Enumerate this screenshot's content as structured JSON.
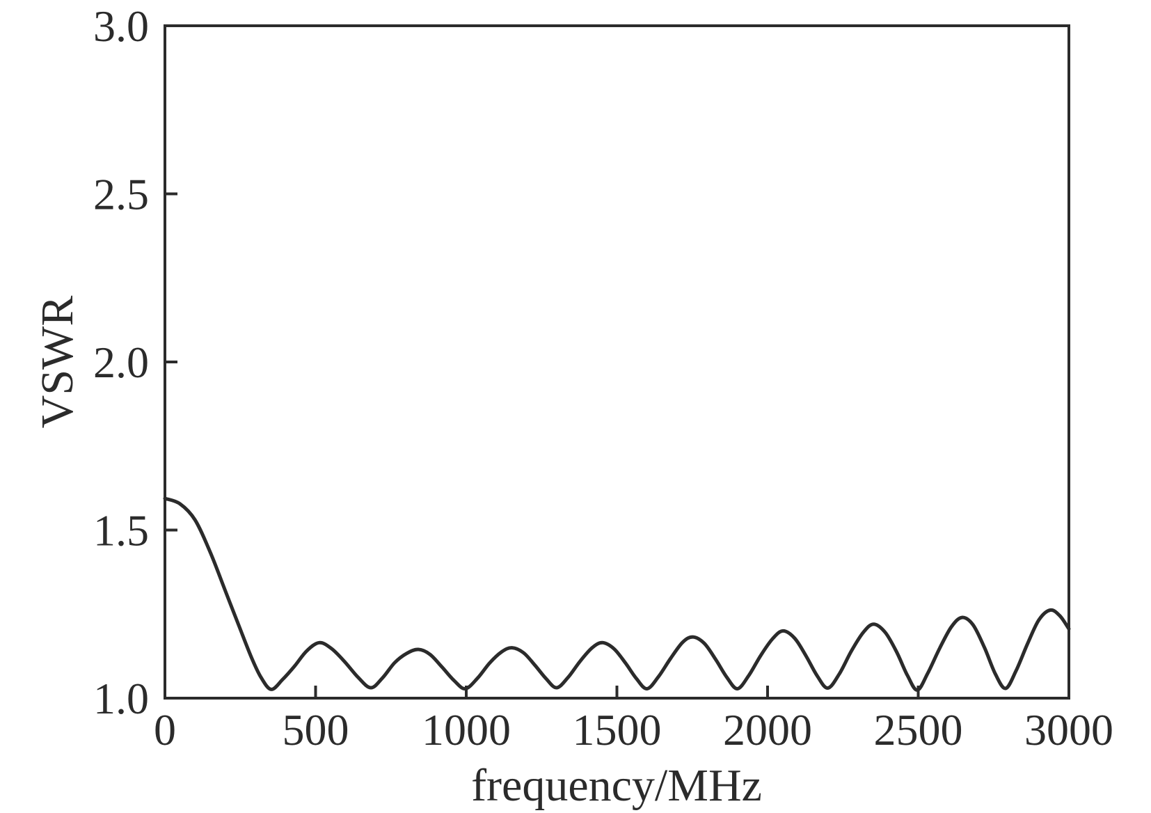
{
  "page": {
    "background": "#ffffff",
    "ink_color": "#2b2b2b"
  },
  "chart_data": {
    "type": "line",
    "title": "",
    "xlabel": "frequency/MHz",
    "ylabel": "VSWR",
    "xlim": [
      0,
      3000
    ],
    "ylim": [
      1.0,
      3.0
    ],
    "x_ticks": [
      0,
      500,
      1000,
      1500,
      2000,
      2500,
      3000
    ],
    "x_tick_labels": [
      "0",
      "500",
      "1000",
      "1500",
      "2000",
      "2500",
      "3000"
    ],
    "y_ticks": [
      1.0,
      1.5,
      2.0,
      2.5,
      3.0
    ],
    "y_tick_labels": [
      "1.0",
      "1.5",
      "2.0",
      "2.5",
      "3.0"
    ],
    "grid": false,
    "legend": "none",
    "frame_style": "closed box, major ticks inward on left and bottom axes only",
    "series": [
      {
        "name": "VSWR",
        "color": "#2b2b2b",
        "points": [
          [
            0,
            1.594
          ],
          [
            50,
            1.578
          ],
          [
            100,
            1.53
          ],
          [
            150,
            1.435
          ],
          [
            200,
            1.32
          ],
          [
            250,
            1.205
          ],
          [
            290,
            1.115
          ],
          [
            320,
            1.06
          ],
          [
            353,
            1.026
          ],
          [
            390,
            1.055
          ],
          [
            430,
            1.095
          ],
          [
            470,
            1.14
          ],
          [
            512,
            1.165
          ],
          [
            552,
            1.148
          ],
          [
            595,
            1.11
          ],
          [
            640,
            1.063
          ],
          [
            683,
            1.031
          ],
          [
            722,
            1.06
          ],
          [
            762,
            1.105
          ],
          [
            802,
            1.133
          ],
          [
            841,
            1.145
          ],
          [
            880,
            1.13
          ],
          [
            920,
            1.092
          ],
          [
            960,
            1.052
          ],
          [
            997,
            1.028
          ],
          [
            1038,
            1.06
          ],
          [
            1078,
            1.105
          ],
          [
            1118,
            1.138
          ],
          [
            1152,
            1.15
          ],
          [
            1190,
            1.135
          ],
          [
            1228,
            1.098
          ],
          [
            1265,
            1.058
          ],
          [
            1300,
            1.031
          ],
          [
            1338,
            1.062
          ],
          [
            1378,
            1.11
          ],
          [
            1418,
            1.15
          ],
          [
            1452,
            1.165
          ],
          [
            1490,
            1.147
          ],
          [
            1528,
            1.105
          ],
          [
            1565,
            1.058
          ],
          [
            1600,
            1.028
          ],
          [
            1638,
            1.064
          ],
          [
            1678,
            1.118
          ],
          [
            1718,
            1.166
          ],
          [
            1752,
            1.182
          ],
          [
            1790,
            1.163
          ],
          [
            1828,
            1.115
          ],
          [
            1865,
            1.062
          ],
          [
            1900,
            1.028
          ],
          [
            1938,
            1.068
          ],
          [
            1978,
            1.128
          ],
          [
            2018,
            1.178
          ],
          [
            2052,
            1.2
          ],
          [
            2090,
            1.178
          ],
          [
            2128,
            1.125
          ],
          [
            2165,
            1.066
          ],
          [
            2200,
            1.03
          ],
          [
            2238,
            1.072
          ],
          [
            2278,
            1.14
          ],
          [
            2318,
            1.196
          ],
          [
            2352,
            1.22
          ],
          [
            2390,
            1.196
          ],
          [
            2428,
            1.138
          ],
          [
            2464,
            1.068
          ],
          [
            2497,
            1.024
          ],
          [
            2532,
            1.075
          ],
          [
            2572,
            1.15
          ],
          [
            2610,
            1.212
          ],
          [
            2645,
            1.24
          ],
          [
            2682,
            1.218
          ],
          [
            2720,
            1.15
          ],
          [
            2756,
            1.072
          ],
          [
            2790,
            1.029
          ],
          [
            2825,
            1.082
          ],
          [
            2862,
            1.16
          ],
          [
            2900,
            1.232
          ],
          [
            2938,
            1.262
          ],
          [
            2970,
            1.245
          ],
          [
            3000,
            1.206
          ]
        ]
      }
    ]
  }
}
